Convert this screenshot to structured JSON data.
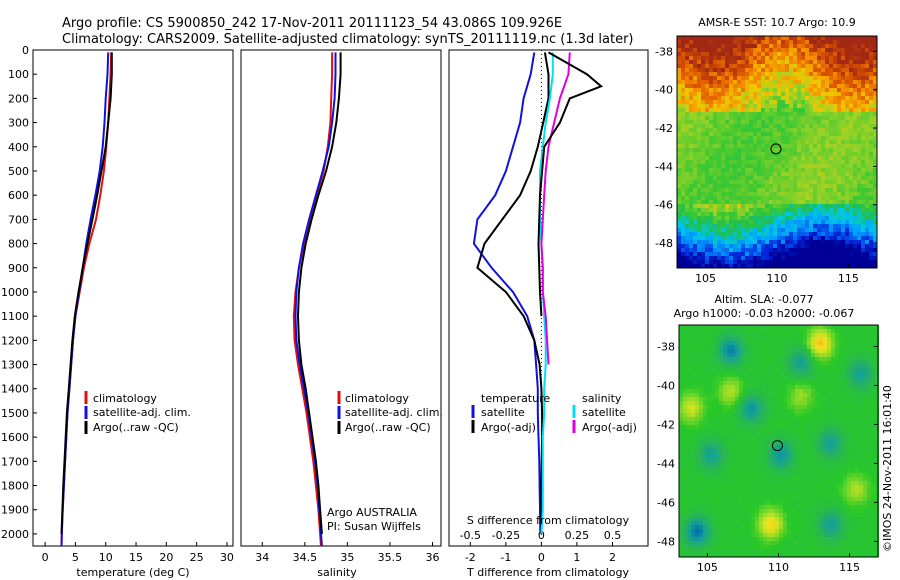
{
  "header": {
    "line1": "Argo profile: CS 5900850_242 17-Nov-2011 20111123_54 43.086S 109.926E",
    "line2": "Climatology: CARS2009. Satellite-adjusted climatology: synTS_20111119.nc (1.3d later)"
  },
  "colors": {
    "climatology": "#e01010",
    "satellite": "#1010e0",
    "argo": "#000000",
    "satellite_s": "#00e0f0",
    "argo_s": "#e000e0"
  },
  "chart_data": [
    {
      "type": "line",
      "name": "temperature-profile",
      "xlabel": "temperature (deg C)",
      "xlim": [
        -2,
        31
      ],
      "ylim": [
        2050,
        0
      ],
      "xticks": [
        0,
        5,
        10,
        15,
        20,
        25,
        30
      ],
      "yticks": [
        0,
        100,
        200,
        300,
        400,
        500,
        600,
        700,
        800,
        900,
        1000,
        1100,
        1200,
        1300,
        1400,
        1500,
        1600,
        1700,
        1800,
        1900,
        2000
      ],
      "legend": [
        "climatology",
        "satellite-adj. clim.",
        "Argo(..raw -QC)"
      ],
      "series": [
        {
          "name": "climatology",
          "color": "#e01010",
          "points": [
            [
              10.9,
              10
            ],
            [
              10.8,
              100
            ],
            [
              10.6,
              200
            ],
            [
              10.4,
              300
            ],
            [
              10.1,
              400
            ],
            [
              9.7,
              500
            ],
            [
              9.1,
              600
            ],
            [
              8.4,
              700
            ],
            [
              7.3,
              800
            ],
            [
              6.4,
              900
            ],
            [
              5.7,
              1000
            ],
            [
              5.0,
              1100
            ],
            [
              4.6,
              1200
            ],
            [
              4.3,
              1300
            ],
            [
              4.0,
              1400
            ],
            [
              3.7,
              1500
            ],
            [
              3.5,
              1600
            ],
            [
              3.3,
              1700
            ],
            [
              3.1,
              1800
            ],
            [
              2.9,
              1900
            ],
            [
              2.75,
              2000
            ],
            [
              2.7,
              2050
            ]
          ]
        },
        {
          "name": "satellite-adj. clim.",
          "color": "#1010e0",
          "points": [
            [
              10.4,
              10
            ],
            [
              10.3,
              100
            ],
            [
              10.0,
              200
            ],
            [
              9.8,
              300
            ],
            [
              9.5,
              400
            ],
            [
              9.0,
              500
            ],
            [
              8.3,
              600
            ],
            [
              7.5,
              700
            ],
            [
              6.8,
              800
            ],
            [
              6.2,
              900
            ],
            [
              5.6,
              1000
            ],
            [
              5.0,
              1100
            ],
            [
              4.6,
              1200
            ],
            [
              4.3,
              1300
            ],
            [
              4.0,
              1400
            ],
            [
              3.7,
              1500
            ],
            [
              3.5,
              1600
            ],
            [
              3.3,
              1700
            ],
            [
              3.1,
              1800
            ],
            [
              2.9,
              1900
            ],
            [
              2.75,
              2000
            ],
            [
              2.7,
              2050
            ]
          ]
        },
        {
          "name": "Argo(..raw -QC)",
          "color": "#000000",
          "points": [
            [
              11.0,
              10
            ],
            [
              11.0,
              100
            ],
            [
              10.8,
              200
            ],
            [
              10.4,
              300
            ],
            [
              10.0,
              400
            ],
            [
              9.3,
              500
            ],
            [
              8.6,
              600
            ],
            [
              7.8,
              700
            ],
            [
              7.0,
              800
            ],
            [
              6.2,
              900
            ],
            [
              5.5,
              1000
            ],
            [
              4.9,
              1100
            ],
            [
              4.5,
              1200
            ],
            [
              4.2,
              1300
            ],
            [
              3.9,
              1400
            ],
            [
              3.6,
              1500
            ],
            [
              3.4,
              1600
            ],
            [
              3.2,
              1700
            ],
            [
              3.0,
              1800
            ],
            [
              2.85,
              1900
            ],
            [
              2.7,
              2000
            ]
          ]
        }
      ]
    },
    {
      "type": "line",
      "name": "salinity-profile",
      "xlabel": "salinity",
      "xlim": [
        33.75,
        36.1
      ],
      "ylim": [
        2050,
        0
      ],
      "xticks": [
        34,
        34.5,
        35,
        35.5,
        36
      ],
      "xticklabels": [
        "34",
        "34.5",
        "35",
        "35.5",
        "36"
      ],
      "legend": [
        "climatology",
        "satellite-adj. clim.",
        "Argo(..raw -QC)"
      ],
      "annotation": [
        "Argo AUSTRALIA",
        "PI: Susan Wijffels"
      ],
      "series": [
        {
          "name": "climatology",
          "color": "#e01010",
          "points": [
            [
              34.82,
              10
            ],
            [
              34.82,
              100
            ],
            [
              34.81,
              200
            ],
            [
              34.8,
              300
            ],
            [
              34.77,
              400
            ],
            [
              34.72,
              500
            ],
            [
              34.64,
              600
            ],
            [
              34.57,
              700
            ],
            [
              34.49,
              800
            ],
            [
              34.43,
              900
            ],
            [
              34.39,
              1000
            ],
            [
              34.37,
              1100
            ],
            [
              34.38,
              1200
            ],
            [
              34.42,
              1300
            ],
            [
              34.47,
              1400
            ],
            [
              34.52,
              1500
            ],
            [
              34.56,
              1600
            ],
            [
              34.6,
              1700
            ],
            [
              34.63,
              1800
            ],
            [
              34.66,
              1900
            ],
            [
              34.68,
              2000
            ],
            [
              34.69,
              2050
            ]
          ]
        },
        {
          "name": "satellite-adj. clim.",
          "color": "#1010e0",
          "points": [
            [
              34.86,
              10
            ],
            [
              34.86,
              100
            ],
            [
              34.85,
              200
            ],
            [
              34.82,
              300
            ],
            [
              34.78,
              400
            ],
            [
              34.71,
              500
            ],
            [
              34.63,
              600
            ],
            [
              34.55,
              700
            ],
            [
              34.48,
              800
            ],
            [
              34.43,
              900
            ],
            [
              34.4,
              1000
            ],
            [
              34.39,
              1100
            ],
            [
              34.4,
              1200
            ],
            [
              34.44,
              1300
            ],
            [
              34.49,
              1400
            ],
            [
              34.54,
              1500
            ],
            [
              34.58,
              1600
            ],
            [
              34.62,
              1700
            ],
            [
              34.65,
              1800
            ],
            [
              34.67,
              1900
            ],
            [
              34.69,
              2000
            ],
            [
              34.7,
              2050
            ]
          ]
        },
        {
          "name": "Argo(..raw -QC)",
          "color": "#000000",
          "points": [
            [
              34.92,
              10
            ],
            [
              34.92,
              100
            ],
            [
              34.9,
              200
            ],
            [
              34.87,
              300
            ],
            [
              34.82,
              400
            ],
            [
              34.75,
              500
            ],
            [
              34.66,
              600
            ],
            [
              34.58,
              700
            ],
            [
              34.51,
              800
            ],
            [
              34.46,
              900
            ],
            [
              34.43,
              1000
            ],
            [
              34.42,
              1100
            ],
            [
              34.43,
              1200
            ],
            [
              34.46,
              1300
            ],
            [
              34.51,
              1400
            ],
            [
              34.55,
              1500
            ],
            [
              34.59,
              1600
            ],
            [
              34.63,
              1700
            ],
            [
              34.66,
              1800
            ],
            [
              34.68,
              1900
            ],
            [
              34.7,
              2000
            ]
          ]
        }
      ]
    },
    {
      "type": "line",
      "name": "difference-profile",
      "xlabel": "T difference from climatology",
      "xlabel2": "S difference from climatology",
      "xlim": [
        -2.6,
        3.0
      ],
      "ylim": [
        2050,
        0
      ],
      "xticks": [
        -2,
        -1,
        0,
        1,
        2
      ],
      "xticks2": [
        -0.5,
        -0.25,
        0,
        0.25,
        0.5
      ],
      "xticklabels2": [
        "-0.5",
        "-0.25",
        "0",
        "0.25",
        "0.5"
      ],
      "legend_t": {
        "title": "temperature",
        "items": [
          "satellite",
          "Argo(-adj)"
        ]
      },
      "legend_s": {
        "title": "salinity",
        "items": [
          "satellite",
          "Argo(-adj)"
        ]
      },
      "series": [
        {
          "name": "T satellite",
          "color": "#1010e0",
          "points": [
            [
              -0.2,
              10
            ],
            [
              -0.3,
              100
            ],
            [
              -0.5,
              200
            ],
            [
              -0.6,
              300
            ],
            [
              -0.8,
              400
            ],
            [
              -1.0,
              500
            ],
            [
              -1.3,
              600
            ],
            [
              -1.8,
              700
            ],
            [
              -1.9,
              800
            ],
            [
              -1.4,
              900
            ],
            [
              -0.8,
              1000
            ],
            [
              -0.4,
              1100
            ],
            [
              -0.2,
              1200
            ],
            [
              -0.15,
              1300
            ],
            [
              -0.1,
              1400
            ],
            [
              -0.1,
              1500
            ],
            [
              -0.08,
              1600
            ],
            [
              -0.06,
              1700
            ],
            [
              -0.05,
              1800
            ],
            [
              -0.04,
              1900
            ],
            [
              -0.03,
              2000
            ]
          ]
        },
        {
          "name": "T Argo(-adj)",
          "color": "#000000",
          "points": [
            [
              0.1,
              10
            ],
            [
              0.2,
              100
            ],
            [
              0.2,
              200
            ],
            [
              0.05,
              300
            ],
            [
              -0.1,
              400
            ],
            [
              -0.3,
              500
            ],
            [
              -0.6,
              600
            ],
            [
              -1.1,
              700
            ],
            [
              -1.6,
              800
            ],
            [
              -1.8,
              900
            ],
            [
              -1.0,
              1000
            ],
            [
              -0.5,
              1100
            ],
            [
              -0.2,
              1200
            ],
            [
              -0.05,
              1300
            ],
            [
              0.0,
              1400
            ],
            [
              0.02,
              1500
            ],
            [
              0.02,
              1600
            ],
            [
              0.01,
              1700
            ],
            [
              0.0,
              1800
            ],
            [
              0.0,
              1900
            ],
            [
              0.0,
              2000
            ]
          ]
        },
        {
          "name": "S satellite",
          "color": "#00e0f0",
          "points": [
            [
              0.08,
              10
            ],
            [
              0.08,
              100
            ],
            [
              0.06,
              200
            ],
            [
              0.03,
              300
            ],
            [
              0.01,
              400
            ],
            [
              -0.01,
              500
            ],
            [
              -0.01,
              600
            ],
            [
              -0.01,
              700
            ],
            [
              0.0,
              800
            ],
            [
              0.01,
              900
            ],
            [
              0.01,
              1000
            ],
            [
              0.02,
              1100
            ],
            [
              0.03,
              1200
            ],
            [
              0.03,
              1300
            ],
            [
              0.02,
              1400
            ],
            [
              0.02,
              1500
            ],
            [
              0.01,
              1600
            ],
            [
              0.01,
              1700
            ],
            [
              0.01,
              1800
            ],
            [
              0.01,
              1900
            ],
            [
              0.0,
              2000
            ]
          ]
        },
        {
          "name": "S Argo(-adj)",
          "color": "#e000e0",
          "points": [
            [
              0.2,
              10
            ],
            [
              0.19,
              100
            ],
            [
              0.13,
              200
            ],
            [
              0.09,
              300
            ],
            [
              0.05,
              400
            ],
            [
              0.03,
              500
            ],
            [
              0.02,
              600
            ],
            [
              0.01,
              700
            ],
            [
              0.0,
              800
            ],
            [
              0.01,
              900
            ],
            [
              0.01,
              1000
            ],
            [
              0.03,
              1100
            ],
            [
              0.04,
              1200
            ],
            [
              0.05,
              1300
            ]
          ]
        },
        {
          "name": "S Argo(-adj) outer",
          "color": "#000000",
          "points": [
            [
              0.05,
              10
            ],
            [
              0.32,
              100
            ],
            [
              0.42,
              150
            ],
            [
              0.2,
              200
            ],
            [
              0.13,
              300
            ],
            [
              0.02,
              400
            ],
            [
              -0.01,
              600
            ],
            [
              -0.02,
              800
            ],
            [
              -0.01,
              1000
            ],
            [
              0.0,
              1100
            ]
          ]
        }
      ]
    },
    {
      "type": "heatmap",
      "name": "sst-map",
      "title": "AMSR-E SST: 10.7  Argo: 10.9",
      "xlim": [
        103,
        117
      ],
      "ylim": [
        -49.3,
        -37.2
      ],
      "xticks": [
        105,
        110,
        115
      ],
      "yticks": [
        -38,
        -40,
        -42,
        -44,
        -46,
        -48
      ],
      "marker": [
        109.926,
        -43.086
      ]
    },
    {
      "type": "heatmap",
      "name": "sla-map",
      "title": "Altim. SLA: -0.077",
      "subtitle": "Argo h1000: -0.03 h2000: -0.067",
      "xlim": [
        103,
        117
      ],
      "ylim": [
        -48.8,
        -36.9
      ],
      "xticks": [
        105,
        110,
        115
      ],
      "yticks": [
        -38,
        -40,
        -42,
        -44,
        -46,
        -48
      ],
      "marker": [
        109.926,
        -43.086
      ]
    }
  ],
  "side_label": "©IMOS 24-Nov-2011 16:01:40"
}
